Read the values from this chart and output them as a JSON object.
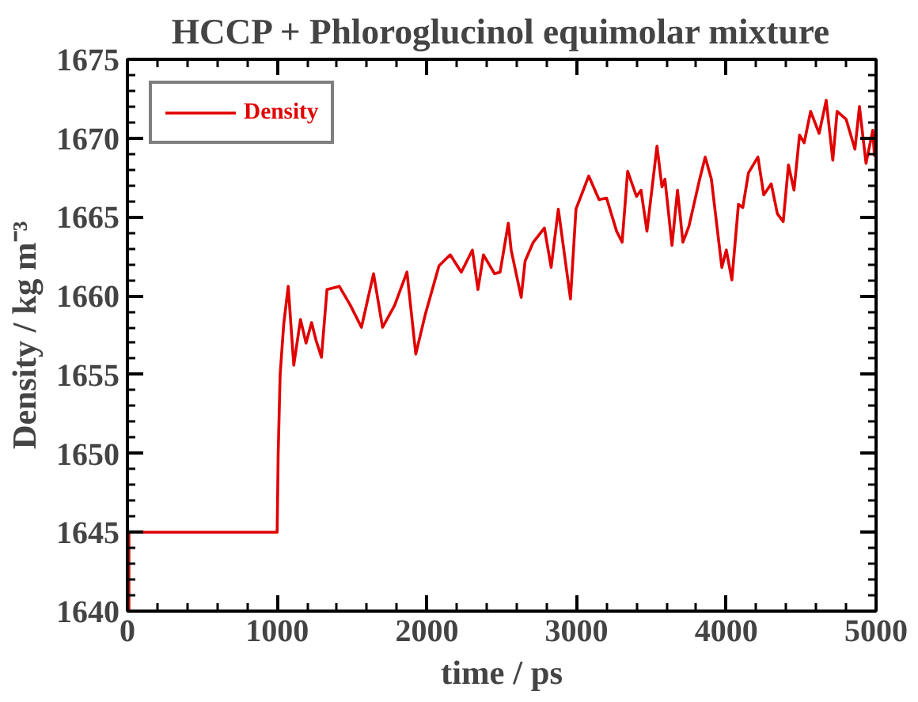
{
  "chart_data": {
    "type": "line",
    "title": "HCCP + Phloroglucinol equimolar mixture",
    "xlabel": "time / ps",
    "ylabel": "Density / kg m⁻³",
    "xlim": [
      0,
      5000
    ],
    "xticks": [
      0,
      1000,
      2000,
      3000,
      4000,
      5000
    ],
    "ylim": [
      1640,
      1675
    ],
    "yticks": [
      1640,
      1645,
      1650,
      1655,
      1660,
      1665,
      1670,
      1675
    ],
    "grid": false,
    "legend": "top left",
    "marker": "none",
    "line_style": "solid",
    "series": [
      {
        "name": "Density",
        "color": "#e00000",
        "x": [
          0,
          10,
          10,
          1000,
          1007,
          1020,
          1044,
          1074,
          1111,
          1156,
          1193,
          1230,
          1259,
          1296,
          1333,
          1415,
          1489,
          1563,
          1644,
          1704,
          1785,
          1867,
          1926,
          1989,
          2081,
          2156,
          2230,
          2304,
          2341,
          2378,
          2452,
          2489,
          2544,
          2563,
          2630,
          2656,
          2711,
          2785,
          2830,
          2878,
          2959,
          2996,
          3081,
          3150,
          3200,
          3267,
          3304,
          3341,
          3400,
          3430,
          3470,
          3537,
          3570,
          3590,
          3637,
          3674,
          3710,
          3750,
          3822,
          3859,
          3900,
          3970,
          4000,
          4037,
          4081,
          4110,
          4148,
          4211,
          4250,
          4300,
          4341,
          4380,
          4415,
          4452,
          4489,
          4520,
          4563,
          4620,
          4667,
          4711,
          4740,
          4800,
          4859,
          4889,
          4933,
          4978,
          4989,
          5000
        ],
        "values": [
          1640,
          1640,
          1645,
          1645,
          1650,
          1655,
          1658.2,
          1660.6,
          1655.6,
          1658.5,
          1657,
          1658.3,
          1657.2,
          1656.1,
          1660.4,
          1660.6,
          1659.4,
          1658,
          1661.4,
          1658,
          1659.4,
          1661.5,
          1656.3,
          1658.8,
          1661.9,
          1662.6,
          1661.5,
          1662.9,
          1660.4,
          1662.6,
          1661.4,
          1661.5,
          1664.6,
          1662.9,
          1659.9,
          1662.2,
          1663.4,
          1664.3,
          1661.8,
          1665.5,
          1659.8,
          1665.5,
          1667.6,
          1666.1,
          1666.2,
          1664.1,
          1663.4,
          1667.9,
          1666.3,
          1666.7,
          1664.1,
          1669.5,
          1666.9,
          1667.4,
          1663.2,
          1666.7,
          1663.4,
          1664.4,
          1667.4,
          1668.8,
          1667.4,
          1661.8,
          1662.9,
          1661,
          1665.8,
          1665.6,
          1667.8,
          1668.8,
          1666.4,
          1667.1,
          1665.2,
          1664.7,
          1668.3,
          1666.7,
          1670.2,
          1669.7,
          1671.7,
          1670.3,
          1672.4,
          1668.6,
          1671.7,
          1671.2,
          1669.3,
          1672,
          1668.4,
          1670.5,
          1668.9,
          1669.5
        ]
      }
    ]
  }
}
